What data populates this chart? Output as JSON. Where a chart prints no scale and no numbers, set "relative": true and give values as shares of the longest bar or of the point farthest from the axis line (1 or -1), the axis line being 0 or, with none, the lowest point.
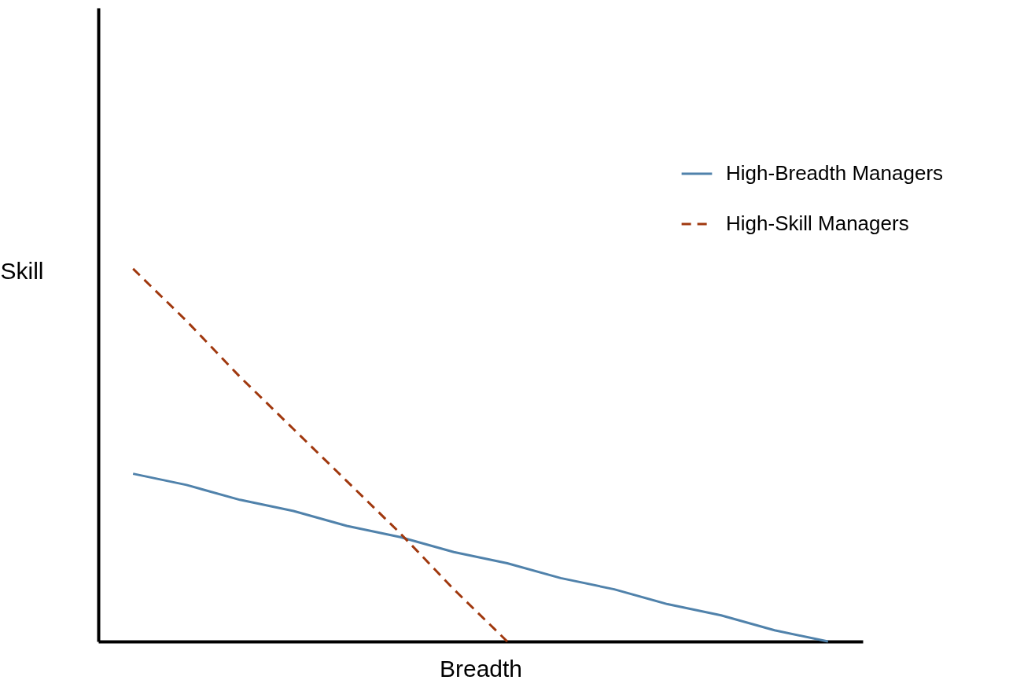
{
  "chart_data": {
    "type": "line",
    "relative": true,
    "xlabel": "Breadth",
    "ylabel": "Skill",
    "legend": "top right",
    "grid": false,
    "marker": "none",
    "categories": [
      null,
      null,
      null,
      null,
      null,
      null,
      null,
      null,
      null,
      null,
      null,
      null,
      null,
      null
    ],
    "series": [
      {
        "name": "High-Breadth Managers",
        "color": "#5082ab",
        "line_style": "solid",
        "values": [
          0.45,
          0.42,
          0.38,
          0.35,
          0.31,
          0.28,
          0.24,
          0.21,
          0.17,
          0.14,
          0.1,
          0.07,
          0.03,
          0
        ]
      },
      {
        "name": "High-Skill Managers",
        "color": "#a0380e",
        "line_style": "dashed",
        "values": [
          1,
          0.86,
          0.71,
          0.57,
          0.43,
          0.29,
          0.14,
          0,
          null,
          null,
          null,
          null,
          null,
          null
        ]
      }
    ]
  }
}
